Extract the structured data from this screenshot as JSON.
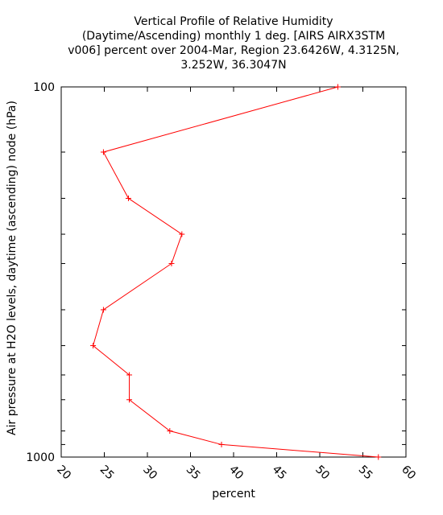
{
  "chart_data": {
    "type": "line",
    "title": [
      "Vertical Profile of Relative Humidity",
      "(Daytime/Ascending) monthly 1 deg. [AIRS AIRX3STM",
      "v006] percent over 2004-Mar, Region 23.6426W, 4.3125N,",
      "3.252W, 36.3047N"
    ],
    "xlabel": "percent",
    "ylabel": "Air pressure at H2O levels, daytime (ascending) node (hPa)",
    "xlim": [
      20,
      60
    ],
    "ylim": [
      1000,
      100
    ],
    "yscale": "log",
    "x_ticks": [
      "20",
      "25",
      "30",
      "35",
      "40",
      "45",
      "50",
      "55",
      "60"
    ],
    "y_tick_labels": [
      "100",
      "1000"
    ],
    "y_minor_ticks": [
      150,
      200,
      250,
      300,
      400,
      500,
      600,
      700,
      850,
      925
    ],
    "series_color": "#ff0000",
    "points": [
      {
        "y": 100,
        "x": 52.1
      },
      {
        "y": 150,
        "x": 24.9
      },
      {
        "y": 200,
        "x": 27.8
      },
      {
        "y": 250,
        "x": 34.0
      },
      {
        "y": 300,
        "x": 32.8
      },
      {
        "y": 400,
        "x": 24.9
      },
      {
        "y": 500,
        "x": 23.7
      },
      {
        "y": 600,
        "x": 27.9
      },
      {
        "y": 700,
        "x": 27.9
      },
      {
        "y": 850,
        "x": 32.6
      },
      {
        "y": 925,
        "x": 38.6
      },
      {
        "y": 1000,
        "x": 56.8
      }
    ],
    "grid": false,
    "legend": "none"
  }
}
